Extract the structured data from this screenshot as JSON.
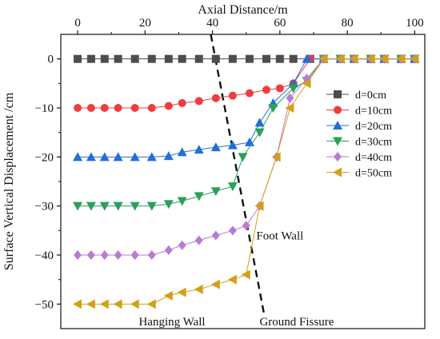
{
  "chart_data": {
    "type": "line",
    "xlabel": "Axial Distance/m",
    "ylabel": "Surface Vertical Displacement /cm",
    "xlim": [
      -5,
      103
    ],
    "ylim": [
      -55,
      5
    ],
    "x_ticks": [
      0,
      20,
      40,
      60,
      80,
      100
    ],
    "y_ticks": [
      0,
      -10,
      -20,
      -30,
      -40,
      -50
    ],
    "x_tick_labels": [
      "0",
      "20",
      "40",
      "60",
      "80",
      "100"
    ],
    "y_tick_labels": [
      "0",
      "−10",
      "−20",
      "−30",
      "−40",
      "−50"
    ],
    "x_axis_position": "top",
    "grid": false,
    "legend_position": "right",
    "series": [
      {
        "name": "d=0cm",
        "color": "#4d4d4d",
        "marker": "square",
        "x": [
          0,
          4,
          8,
          12,
          17,
          22,
          27,
          31,
          36,
          41,
          46,
          51,
          56,
          60,
          64,
          69,
          73,
          78,
          82,
          87,
          91,
          96,
          100
        ],
        "y": [
          0,
          0,
          0,
          0,
          0,
          0,
          0,
          0,
          0,
          0,
          0,
          0,
          0,
          0,
          0,
          0,
          0,
          0,
          0,
          0,
          0,
          0,
          0
        ]
      },
      {
        "name": "d=10cm",
        "color": "#f03c3c",
        "marker": "circle",
        "x": [
          0,
          4,
          8,
          12,
          17,
          22,
          27,
          31,
          36,
          41,
          46,
          51,
          56,
          60,
          64,
          69,
          73,
          78,
          82,
          87,
          91,
          96,
          100
        ],
        "y": [
          -10,
          -10,
          -10,
          -10,
          -10,
          -10,
          -9.6,
          -9,
          -8.6,
          -8,
          -7.5,
          -7,
          -6.3,
          -6,
          -5,
          0,
          0,
          0,
          0,
          0,
          0,
          0,
          0
        ]
      },
      {
        "name": "d=20cm",
        "color": "#1f6fdc",
        "marker": "triangle-up",
        "x": [
          0,
          4,
          8,
          12,
          17,
          22,
          27,
          31,
          36,
          41,
          46,
          51,
          54,
          58,
          64,
          68,
          73,
          78,
          82,
          87,
          91,
          96,
          100
        ],
        "y": [
          -20,
          -20,
          -20,
          -20,
          -20,
          -20,
          -19.8,
          -19,
          -18.5,
          -18,
          -17.6,
          -17,
          -13,
          -9,
          -5,
          0,
          0,
          0,
          0,
          0,
          0,
          0,
          0
        ]
      },
      {
        "name": "d=30cm",
        "color": "#2aa05a",
        "marker": "triangle-down",
        "x": [
          0,
          4,
          8,
          12,
          17,
          22,
          27,
          31,
          36,
          41,
          46,
          49,
          54,
          58,
          64,
          68,
          73,
          78,
          82,
          87,
          91,
          96,
          100
        ],
        "y": [
          -30,
          -30,
          -30,
          -30,
          -30,
          -30,
          -29.6,
          -29,
          -28,
          -27,
          -26,
          -20,
          -15,
          -10,
          -6,
          -4.5,
          0,
          0,
          0,
          0,
          0,
          0,
          0
        ]
      },
      {
        "name": "d=40cm",
        "color": "#b97ad6",
        "marker": "diamond",
        "x": [
          0,
          4,
          8,
          12,
          17,
          22,
          27,
          31,
          36,
          41,
          46,
          50,
          54,
          59,
          63,
          68,
          73,
          78,
          82,
          87,
          91,
          96,
          100
        ],
        "y": [
          -40,
          -40,
          -40,
          -40,
          -40,
          -40,
          -39,
          -38,
          -37,
          -36,
          -35,
          -34,
          -30,
          -20,
          -8,
          -4,
          0,
          0,
          0,
          0,
          0,
          0,
          0
        ]
      },
      {
        "name": "d=50cm",
        "color": "#d4a017",
        "marker": "triangle-left",
        "x": [
          0,
          4,
          8,
          12,
          17,
          22,
          27,
          31,
          36,
          41,
          46,
          50,
          54,
          59,
          63,
          68,
          73,
          78,
          82,
          87,
          91,
          96,
          100
        ],
        "y": [
          -50,
          -50,
          -50,
          -50,
          -50,
          -50,
          -48.3,
          -47.6,
          -47,
          -46,
          -45,
          -44,
          -30,
          -20,
          -10,
          -5,
          0,
          0,
          0,
          0,
          0,
          0,
          0
        ]
      }
    ],
    "annotations": [
      {
        "text": "Foot Wall",
        "x": 60,
        "y": -36
      },
      {
        "text": "Hanging Wall",
        "x": 28,
        "y": -53.5
      },
      {
        "text": "Ground Fissure",
        "x": 65,
        "y": -53.5
      }
    ],
    "fissure_line": {
      "x": [
        39.5,
        55.3
      ],
      "y": [
        5,
        -52
      ],
      "style": "dashed",
      "color": "#111111"
    }
  }
}
